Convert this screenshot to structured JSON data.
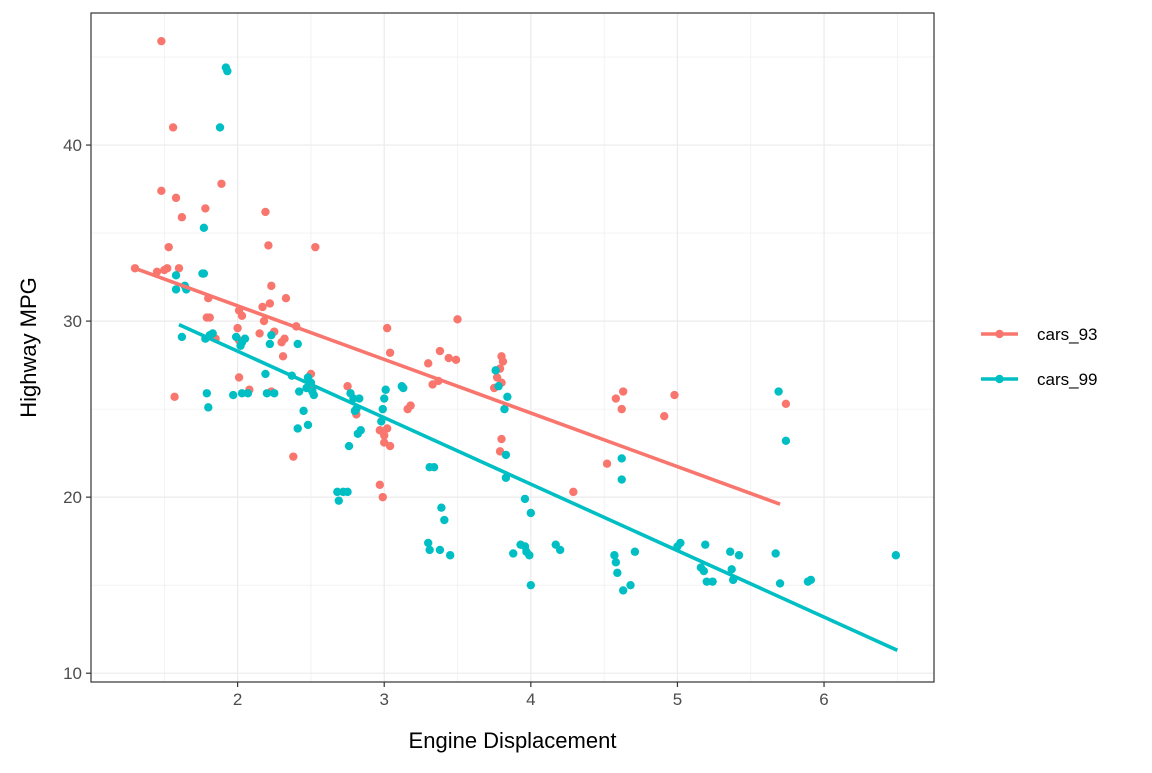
{
  "chart_data": {
    "type": "scatter",
    "title": "",
    "xlabel": "Engine Displacement",
    "ylabel": "Highway MPG",
    "xlim": [
      1.0,
      6.75
    ],
    "ylim": [
      9.5,
      47.5
    ],
    "x_ticks": [
      2,
      3,
      4,
      5,
      6
    ],
    "y_ticks": [
      10,
      20,
      30,
      40
    ],
    "grid": true,
    "legend_position": "right",
    "colors": {
      "cars_93": "#F8766D",
      "cars_99": "#00BFC4",
      "axis": "#333333",
      "grid": "#ebebeb"
    },
    "series": [
      {
        "name": "cars_93",
        "color": "#F8766D",
        "trend": {
          "x": [
            1.3,
            5.7
          ],
          "y": [
            33.0,
            19.6
          ]
        },
        "points": [
          [
            1.48,
            45.9
          ],
          [
            1.56,
            41.0
          ],
          [
            1.48,
            37.4
          ],
          [
            1.58,
            37.0
          ],
          [
            1.62,
            35.9
          ],
          [
            1.53,
            34.2
          ],
          [
            1.3,
            33.0
          ],
          [
            1.45,
            32.8
          ],
          [
            1.5,
            32.9
          ],
          [
            1.52,
            33.0
          ],
          [
            1.6,
            33.0
          ],
          [
            1.78,
            36.4
          ],
          [
            1.89,
            37.8
          ],
          [
            2.19,
            36.2
          ],
          [
            2.21,
            34.3
          ],
          [
            2.53,
            34.2
          ],
          [
            2.23,
            32.0
          ],
          [
            2.33,
            31.3
          ],
          [
            2.22,
            31.0
          ],
          [
            2.17,
            30.8
          ],
          [
            2.01,
            30.6
          ],
          [
            2.03,
            30.3
          ],
          [
            1.79,
            30.2
          ],
          [
            1.8,
            31.3
          ],
          [
            1.81,
            30.2
          ],
          [
            2.0,
            29.6
          ],
          [
            2.15,
            29.3
          ],
          [
            2.18,
            30.0
          ],
          [
            2.25,
            29.4
          ],
          [
            2.32,
            29.0
          ],
          [
            2.4,
            29.7
          ],
          [
            2.31,
            28.0
          ],
          [
            2.3,
            28.8
          ],
          [
            1.85,
            29.0
          ],
          [
            2.01,
            28.9
          ],
          [
            2.01,
            26.8
          ],
          [
            2.08,
            26.1
          ],
          [
            2.23,
            26.0
          ],
          [
            2.38,
            22.3
          ],
          [
            2.5,
            27.0
          ],
          [
            2.51,
            26.2
          ],
          [
            1.57,
            25.7
          ],
          [
            3.02,
            29.6
          ],
          [
            3.04,
            28.2
          ],
          [
            3.5,
            30.1
          ],
          [
            3.38,
            28.3
          ],
          [
            3.44,
            27.9
          ],
          [
            3.49,
            27.8
          ],
          [
            3.3,
            27.6
          ],
          [
            3.33,
            26.4
          ],
          [
            3.37,
            26.6
          ],
          [
            3.16,
            25.0
          ],
          [
            3.18,
            25.2
          ],
          [
            2.75,
            26.3
          ],
          [
            2.81,
            24.7
          ],
          [
            2.97,
            23.8
          ],
          [
            3.0,
            23.5
          ],
          [
            3.02,
            23.9
          ],
          [
            3.0,
            23.1
          ],
          [
            3.04,
            22.9
          ],
          [
            2.97,
            20.7
          ],
          [
            2.99,
            20.0
          ],
          [
            3.8,
            28.0
          ],
          [
            3.81,
            27.7
          ],
          [
            3.79,
            27.3
          ],
          [
            3.77,
            26.8
          ],
          [
            3.8,
            26.5
          ],
          [
            3.75,
            26.2
          ],
          [
            3.8,
            23.3
          ],
          [
            3.79,
            22.6
          ],
          [
            4.29,
            20.3
          ],
          [
            4.58,
            25.6
          ],
          [
            4.63,
            26.0
          ],
          [
            4.62,
            25.0
          ],
          [
            4.98,
            25.8
          ],
          [
            4.91,
            24.6
          ],
          [
            4.52,
            21.9
          ],
          [
            5.74,
            25.3
          ]
        ]
      },
      {
        "name": "cars_99",
        "color": "#00BFC4",
        "trend": {
          "x": [
            1.6,
            6.5
          ],
          "y": [
            29.8,
            11.3
          ]
        },
        "points": [
          [
            1.92,
            44.4
          ],
          [
            1.93,
            44.2
          ],
          [
            1.88,
            41.0
          ],
          [
            1.77,
            35.3
          ],
          [
            1.76,
            32.7
          ],
          [
            1.77,
            32.7
          ],
          [
            1.64,
            32.0
          ],
          [
            1.65,
            31.8
          ],
          [
            1.58,
            31.8
          ],
          [
            1.58,
            32.6
          ],
          [
            1.62,
            29.1
          ],
          [
            1.78,
            29.0
          ],
          [
            1.81,
            29.2
          ],
          [
            1.83,
            29.3
          ],
          [
            1.99,
            29.1
          ],
          [
            2.03,
            28.8
          ],
          [
            2.05,
            29.0
          ],
          [
            2.02,
            28.6
          ],
          [
            2.23,
            29.2
          ],
          [
            2.22,
            28.7
          ],
          [
            2.41,
            28.7
          ],
          [
            1.79,
            25.9
          ],
          [
            1.8,
            25.1
          ],
          [
            1.97,
            25.8
          ],
          [
            2.03,
            25.9
          ],
          [
            2.07,
            25.9
          ],
          [
            2.2,
            25.9
          ],
          [
            2.25,
            25.9
          ],
          [
            2.19,
            27.0
          ],
          [
            2.37,
            26.9
          ],
          [
            2.42,
            26.0
          ],
          [
            2.47,
            26.2
          ],
          [
            2.45,
            24.9
          ],
          [
            2.48,
            24.1
          ],
          [
            2.41,
            23.9
          ],
          [
            2.48,
            26.8
          ],
          [
            2.5,
            26.5
          ],
          [
            2.51,
            26.0
          ],
          [
            2.52,
            25.8
          ],
          [
            2.77,
            25.9
          ],
          [
            2.79,
            25.6
          ],
          [
            2.8,
            24.9
          ],
          [
            2.81,
            25.0
          ],
          [
            2.83,
            25.6
          ],
          [
            2.84,
            23.8
          ],
          [
            2.82,
            23.6
          ],
          [
            2.76,
            22.9
          ],
          [
            2.98,
            24.3
          ],
          [
            2.99,
            25.0
          ],
          [
            3.0,
            25.6
          ],
          [
            3.01,
            26.1
          ],
          [
            3.13,
            26.2
          ],
          [
            3.12,
            26.3
          ],
          [
            2.68,
            20.3
          ],
          [
            2.69,
            19.8
          ],
          [
            2.72,
            20.3
          ],
          [
            2.75,
            20.3
          ],
          [
            3.31,
            21.7
          ],
          [
            3.34,
            21.7
          ],
          [
            3.39,
            19.4
          ],
          [
            3.41,
            18.7
          ],
          [
            3.3,
            17.4
          ],
          [
            3.31,
            17.0
          ],
          [
            3.38,
            17.0
          ],
          [
            3.45,
            16.7
          ],
          [
            3.76,
            27.2
          ],
          [
            3.78,
            26.3
          ],
          [
            3.82,
            25.0
          ],
          [
            3.84,
            25.7
          ],
          [
            3.83,
            22.4
          ],
          [
            3.83,
            21.1
          ],
          [
            3.96,
            19.9
          ],
          [
            4.0,
            19.1
          ],
          [
            3.88,
            16.8
          ],
          [
            3.93,
            17.3
          ],
          [
            3.96,
            17.2
          ],
          [
            3.97,
            16.9
          ],
          [
            3.99,
            16.7
          ],
          [
            4.0,
            15.0
          ],
          [
            4.17,
            17.3
          ],
          [
            4.2,
            17.0
          ],
          [
            4.57,
            16.7
          ],
          [
            4.58,
            16.3
          ],
          [
            4.59,
            15.7
          ],
          [
            4.63,
            14.7
          ],
          [
            4.68,
            15.0
          ],
          [
            4.71,
            16.9
          ],
          [
            4.62,
            22.2
          ],
          [
            4.62,
            21.0
          ],
          [
            5.02,
            17.4
          ],
          [
            5.0,
            17.2
          ],
          [
            5.16,
            16.0
          ],
          [
            5.18,
            15.8
          ],
          [
            5.2,
            15.2
          ],
          [
            5.24,
            15.2
          ],
          [
            5.19,
            17.3
          ],
          [
            5.36,
            16.9
          ],
          [
            5.37,
            15.9
          ],
          [
            5.38,
            15.3
          ],
          [
            5.42,
            16.7
          ],
          [
            5.67,
            16.8
          ],
          [
            5.7,
            15.1
          ],
          [
            5.89,
            15.2
          ],
          [
            5.91,
            15.3
          ],
          [
            5.69,
            26.0
          ],
          [
            5.74,
            23.2
          ],
          [
            6.49,
            16.7
          ]
        ]
      }
    ]
  }
}
